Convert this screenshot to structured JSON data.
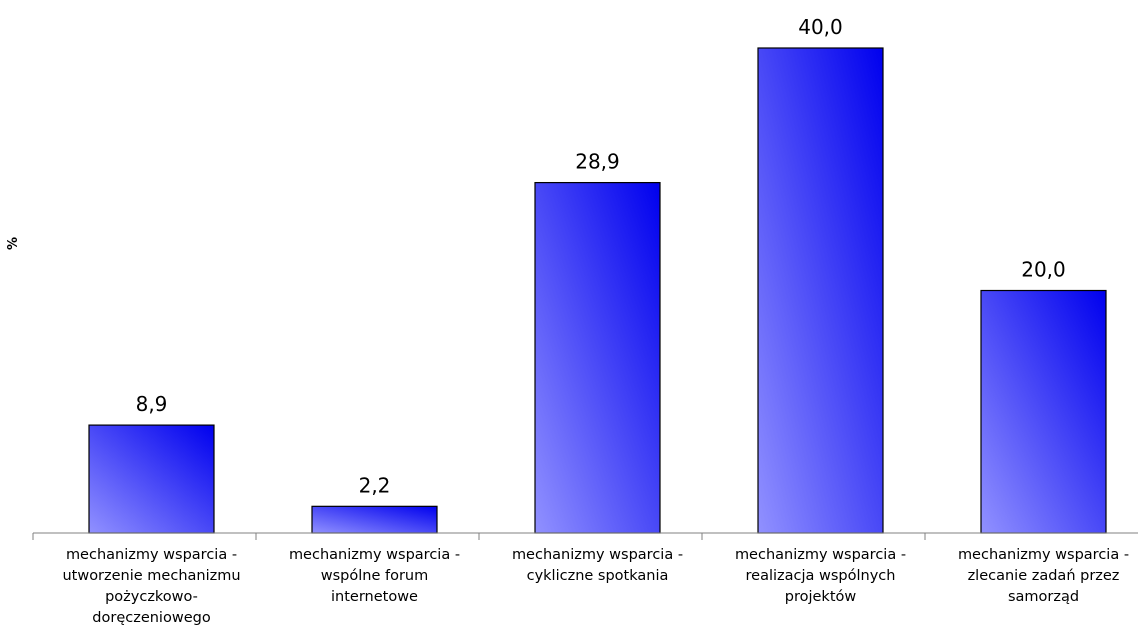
{
  "chart_data": {
    "type": "bar",
    "categories": [
      "mechanizmy wsparcia - utworzenie mechanizmu pożyczkowo-doręczeniowego",
      "mechanizmy wsparcia - wspólne forum internetowe",
      "mechanizmy wsparcia - cykliczne spotkania",
      "mechanizmy wsparcia - realizacja wspólnych projektów",
      "mechanizmy wsparcia - zlecanie zadań przez samorząd"
    ],
    "category_lines": [
      [
        "mechanizmy wsparcia -",
        "utworzenie mechanizmu",
        "pożyczkowo-",
        "doręczeniowego"
      ],
      [
        "mechanizmy wsparcia -",
        "wspólne forum",
        "internetowe"
      ],
      [
        "mechanizmy wsparcia -",
        "cykliczne spotkania"
      ],
      [
        "mechanizmy wsparcia -",
        "realizacja wspólnych",
        "projektów"
      ],
      [
        "mechanizmy wsparcia -",
        "zlecanie zadań przez",
        "samorząd"
      ]
    ],
    "values": [
      8.9,
      2.2,
      28.9,
      40.0,
      20.0
    ],
    "value_labels": [
      "8,9",
      "2,2",
      "28,9",
      "40,0",
      "20,0"
    ],
    "title": "",
    "xlabel": "",
    "ylabel": "%",
    "ylim": [
      0,
      40
    ],
    "grid": false,
    "legend": "none",
    "bar_color_start": "#9191ff",
    "bar_color_end": "#0000ee",
    "bar_outline": "#000000"
  }
}
